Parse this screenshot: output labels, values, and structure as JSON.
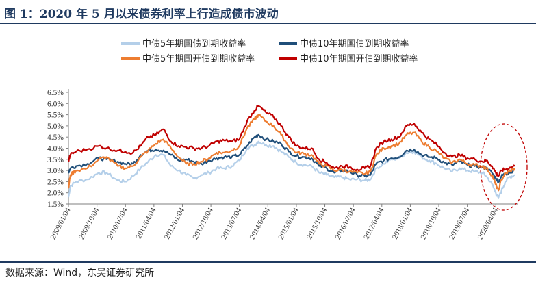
{
  "figure": {
    "title": "图 1：2020 年 5 月以来债券利率上行造成债市波动",
    "source": "数据来源：Wind，东吴证券研究所"
  },
  "colors": {
    "series1": "#b4cfe9",
    "series2": "#1f4e79",
    "series3": "#ed7d31",
    "series4": "#c00000",
    "annotation": "#c00000",
    "axis": "#7f7f7f"
  },
  "chart_data": {
    "type": "line",
    "title": "",
    "xlabel": "",
    "ylabel": "",
    "ylim": [
      1.5,
      6.5
    ],
    "yticks": [
      "1.5%",
      "2.0%",
      "2.5%",
      "3.0%",
      "3.5%",
      "4.0%",
      "4.5%",
      "5.0%",
      "5.5%",
      "6.0%",
      "6.5%"
    ],
    "ytick_values": [
      1.5,
      2.0,
      2.5,
      3.0,
      3.5,
      4.0,
      4.5,
      5.0,
      5.5,
      6.0,
      6.5
    ],
    "xlim": [
      2009.0,
      2020.75
    ],
    "xticks": [
      "2009/01/04",
      "2009/10/04",
      "2010/07/04",
      "2011/04/04",
      "2012/01/04",
      "2012/10/04",
      "2013/07/04",
      "2014/04/04",
      "2015/01/04",
      "2015/10/04",
      "2016/07/04",
      "2017/04/04",
      "2018/01/04",
      "2018/10/04",
      "2019/07/04",
      "2020/04/04"
    ],
    "xtick_values": [
      2009.0,
      2009.75,
      2010.5,
      2011.25,
      2012.0,
      2012.75,
      2013.5,
      2014.25,
      2015.0,
      2015.75,
      2016.5,
      2017.25,
      2018.0,
      2018.75,
      2019.5,
      2020.25
    ],
    "legend_position": "top",
    "annotation": "dashed red ellipse highlighting 2020 rebound",
    "series": [
      {
        "name": "中债5年期国债到期收益率",
        "x": [
          2009.0,
          2009.05,
          2009.2,
          2009.5,
          2009.8,
          2010.0,
          2010.3,
          2010.5,
          2010.7,
          2010.9,
          2011.1,
          2011.3,
          2011.5,
          2011.7,
          2011.9,
          2012.1,
          2012.3,
          2012.5,
          2012.7,
          2012.9,
          2013.1,
          2013.3,
          2013.5,
          2013.7,
          2013.9,
          2014.0,
          2014.2,
          2014.4,
          2014.6,
          2014.8,
          2015.0,
          2015.2,
          2015.4,
          2015.6,
          2015.8,
          2016.0,
          2016.2,
          2016.4,
          2016.6,
          2016.8,
          2016.95,
          2017.1,
          2017.3,
          2017.5,
          2017.7,
          2017.9,
          2018.1,
          2018.3,
          2018.5,
          2018.7,
          2018.9,
          2019.1,
          2019.3,
          2019.5,
          2019.7,
          2019.9,
          2020.0,
          2020.15,
          2020.25,
          2020.32,
          2020.4,
          2020.5,
          2020.6,
          2020.75
        ],
        "values": [
          1.8,
          2.3,
          2.5,
          2.6,
          2.9,
          2.9,
          2.55,
          2.5,
          2.75,
          3.1,
          3.4,
          3.7,
          3.7,
          3.2,
          3.0,
          2.8,
          2.65,
          2.8,
          2.9,
          3.1,
          3.1,
          3.2,
          3.45,
          4.0,
          4.15,
          4.3,
          4.15,
          4.1,
          3.85,
          3.6,
          3.35,
          3.25,
          3.2,
          2.9,
          2.8,
          2.7,
          2.7,
          2.6,
          2.6,
          2.55,
          2.6,
          3.1,
          3.3,
          3.5,
          3.55,
          3.8,
          3.85,
          3.6,
          3.45,
          3.3,
          3.1,
          2.95,
          3.1,
          3.0,
          2.95,
          2.9,
          2.75,
          2.4,
          2.0,
          1.75,
          2.1,
          2.5,
          2.7,
          2.8
        ]
      },
      {
        "name": "中债10年期国债到期收益率",
        "x": [
          2009.0,
          2009.05,
          2009.2,
          2009.5,
          2009.8,
          2010.0,
          2010.3,
          2010.5,
          2010.7,
          2010.9,
          2011.1,
          2011.3,
          2011.5,
          2011.7,
          2011.9,
          2012.1,
          2012.3,
          2012.5,
          2012.7,
          2012.9,
          2013.1,
          2013.3,
          2013.5,
          2013.7,
          2013.9,
          2014.0,
          2014.2,
          2014.4,
          2014.6,
          2014.8,
          2015.0,
          2015.2,
          2015.4,
          2015.6,
          2015.8,
          2016.0,
          2016.2,
          2016.4,
          2016.6,
          2016.8,
          2016.95,
          2017.1,
          2017.3,
          2017.5,
          2017.7,
          2017.9,
          2018.1,
          2018.3,
          2018.5,
          2018.7,
          2018.9,
          2019.1,
          2019.3,
          2019.5,
          2019.7,
          2019.9,
          2020.0,
          2020.15,
          2020.25,
          2020.32,
          2020.4,
          2020.5,
          2020.6,
          2020.75
        ],
        "values": [
          2.9,
          3.1,
          3.2,
          3.3,
          3.55,
          3.5,
          3.4,
          3.3,
          3.3,
          3.7,
          3.9,
          3.95,
          3.9,
          3.7,
          3.45,
          3.5,
          3.4,
          3.3,
          3.45,
          3.55,
          3.6,
          3.6,
          3.7,
          4.1,
          4.5,
          4.6,
          4.4,
          4.3,
          4.2,
          3.85,
          3.65,
          3.6,
          3.55,
          3.2,
          3.1,
          2.9,
          3.0,
          2.95,
          2.8,
          2.75,
          2.8,
          3.3,
          3.45,
          3.55,
          3.6,
          3.9,
          3.95,
          3.7,
          3.6,
          3.55,
          3.35,
          3.25,
          3.4,
          3.25,
          3.2,
          3.15,
          3.1,
          2.9,
          2.65,
          2.5,
          2.75,
          2.85,
          2.9,
          3.05
        ]
      },
      {
        "name": "中债5年期国开债到期收益率",
        "x": [
          2009.0,
          2009.05,
          2009.2,
          2009.5,
          2009.8,
          2010.0,
          2010.3,
          2010.5,
          2010.7,
          2010.9,
          2011.1,
          2011.3,
          2011.5,
          2011.7,
          2011.9,
          2012.1,
          2012.3,
          2012.5,
          2012.7,
          2012.9,
          2013.1,
          2013.3,
          2013.5,
          2013.7,
          2013.9,
          2014.0,
          2014.2,
          2014.4,
          2014.6,
          2014.8,
          2015.0,
          2015.2,
          2015.4,
          2015.6,
          2015.8,
          2016.0,
          2016.2,
          2016.4,
          2016.6,
          2016.8,
          2016.95,
          2017.1,
          2017.3,
          2017.5,
          2017.7,
          2017.9,
          2018.1,
          2018.3,
          2018.5,
          2018.7,
          2018.9,
          2019.1,
          2019.3,
          2019.5,
          2019.7,
          2019.9,
          2020.0,
          2020.15,
          2020.25,
          2020.32,
          2020.4,
          2020.5,
          2020.6,
          2020.75
        ],
        "values": [
          2.2,
          2.8,
          3.0,
          3.1,
          3.5,
          3.6,
          3.2,
          3.1,
          3.2,
          3.6,
          3.9,
          4.2,
          4.4,
          4.0,
          3.6,
          3.3,
          3.3,
          3.4,
          3.55,
          3.8,
          3.8,
          3.9,
          4.1,
          4.9,
          5.3,
          5.5,
          5.2,
          5.0,
          4.6,
          4.1,
          3.8,
          3.75,
          3.7,
          3.3,
          3.2,
          3.0,
          3.05,
          2.95,
          2.9,
          2.85,
          2.95,
          3.7,
          4.0,
          4.1,
          4.2,
          4.6,
          4.7,
          4.3,
          4.05,
          3.85,
          3.55,
          3.35,
          3.5,
          3.3,
          3.25,
          3.2,
          3.1,
          2.8,
          2.35,
          2.1,
          2.6,
          2.85,
          2.95,
          3.1
        ]
      },
      {
        "name": "中债10年期国开债到期收益率",
        "x": [
          2009.0,
          2009.05,
          2009.2,
          2009.5,
          2009.8,
          2010.0,
          2010.3,
          2010.5,
          2010.7,
          2010.9,
          2011.1,
          2011.3,
          2011.5,
          2011.7,
          2011.9,
          2012.1,
          2012.3,
          2012.5,
          2012.7,
          2012.9,
          2013.1,
          2013.3,
          2013.5,
          2013.7,
          2013.9,
          2014.0,
          2014.2,
          2014.4,
          2014.6,
          2014.8,
          2015.0,
          2015.2,
          2015.4,
          2015.6,
          2015.8,
          2016.0,
          2016.2,
          2016.4,
          2016.6,
          2016.8,
          2016.95,
          2017.1,
          2017.3,
          2017.5,
          2017.7,
          2017.9,
          2018.1,
          2018.3,
          2018.5,
          2018.7,
          2018.9,
          2019.1,
          2019.3,
          2019.5,
          2019.7,
          2019.9,
          2020.0,
          2020.15,
          2020.25,
          2020.32,
          2020.4,
          2020.5,
          2020.6,
          2020.75
        ],
        "values": [
          3.4,
          3.7,
          3.85,
          3.95,
          4.1,
          4.0,
          3.9,
          3.85,
          3.8,
          4.1,
          4.5,
          4.6,
          4.85,
          4.3,
          4.1,
          4.05,
          4.0,
          4.0,
          4.1,
          4.3,
          4.35,
          4.3,
          4.4,
          5.2,
          5.7,
          5.9,
          5.6,
          5.4,
          5.0,
          4.5,
          4.1,
          4.0,
          4.0,
          3.5,
          3.35,
          3.1,
          3.2,
          3.15,
          3.05,
          3.1,
          3.2,
          4.0,
          4.3,
          4.4,
          4.5,
          5.0,
          5.1,
          4.7,
          4.4,
          4.15,
          3.8,
          3.6,
          3.7,
          3.55,
          3.5,
          3.4,
          3.45,
          3.2,
          2.9,
          2.75,
          3.0,
          3.05,
          3.1,
          3.2
        ]
      }
    ]
  }
}
